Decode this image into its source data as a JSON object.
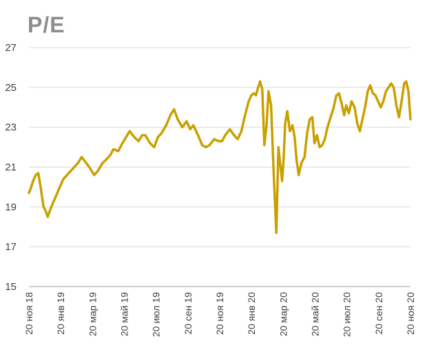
{
  "chart_data": {
    "type": "line",
    "title": "P/E",
    "xlabel": "",
    "ylabel": "",
    "ylim": [
      15,
      27
    ],
    "yticks": [
      15,
      17,
      19,
      21,
      23,
      25,
      27
    ],
    "grid": true,
    "line_color": "#c9a000",
    "x_tick_labels": [
      "20 ноя 18",
      "20 янв 19",
      "20 мар 19",
      "20 май 19",
      "20 июл 19",
      "20 сен 19",
      "20 ноя 19",
      "20 янв 20",
      "20 мар 20",
      "20 май 20",
      "20 июл 20",
      "20 сен 20",
      "20 ноя 20"
    ],
    "x_range": [
      "2018-11-20",
      "2020-11-20"
    ],
    "series": [
      {
        "x": [
          "2018-11-20",
          "2018-11-23",
          "2018-11-28",
          "2018-12-03",
          "2018-12-08",
          "2018-12-13",
          "2018-12-18",
          "2018-12-22",
          "2018-12-26",
          "2018-12-30",
          "2019-01-05",
          "2019-01-10",
          "2019-01-15",
          "2019-01-20",
          "2019-01-25",
          "2019-02-01",
          "2019-02-08",
          "2019-02-15",
          "2019-02-22",
          "2019-03-01",
          "2019-03-10",
          "2019-03-18",
          "2019-03-25",
          "2019-04-01",
          "2019-04-10",
          "2019-04-18",
          "2019-04-25",
          "2019-05-01",
          "2019-05-10",
          "2019-05-18",
          "2019-05-25",
          "2019-06-01",
          "2019-06-10",
          "2019-06-18",
          "2019-06-25",
          "2019-07-01",
          "2019-07-10",
          "2019-07-18",
          "2019-07-25",
          "2019-08-01",
          "2019-08-10",
          "2019-08-18",
          "2019-08-25",
          "2019-09-01",
          "2019-09-10",
          "2019-09-18",
          "2019-09-25",
          "2019-10-01",
          "2019-10-10",
          "2019-10-18",
          "2019-10-25",
          "2019-11-01",
          "2019-11-10",
          "2019-11-18",
          "2019-11-25",
          "2019-12-01",
          "2019-12-10",
          "2019-12-18",
          "2019-12-25",
          "2020-01-01",
          "2020-01-08",
          "2020-01-15",
          "2020-01-20",
          "2020-01-25",
          "2020-01-29",
          "2020-02-02",
          "2020-02-06",
          "2020-02-10",
          "2020-02-14",
          "2020-02-18",
          "2020-02-22",
          "2020-02-27",
          "2020-03-03",
          "2020-03-08",
          "2020-03-12",
          "2020-03-16",
          "2020-03-19",
          "2020-03-22",
          "2020-03-25",
          "2020-03-29",
          "2020-04-03",
          "2020-04-08",
          "2020-04-12",
          "2020-04-16",
          "2020-04-20",
          "2020-04-25",
          "2020-05-01",
          "2020-05-06",
          "2020-05-11",
          "2020-05-16",
          "2020-05-20",
          "2020-05-25",
          "2020-05-30",
          "2020-06-04",
          "2020-06-09",
          "2020-06-14",
          "2020-06-20",
          "2020-06-25",
          "2020-07-01",
          "2020-07-06",
          "2020-07-11",
          "2020-07-16",
          "2020-07-20",
          "2020-07-25",
          "2020-07-30",
          "2020-08-05",
          "2020-08-10",
          "2020-08-15",
          "2020-08-20",
          "2020-08-25",
          "2020-08-30",
          "2020-09-04",
          "2020-09-09",
          "2020-09-14",
          "2020-09-19",
          "2020-09-24",
          "2020-09-29",
          "2020-10-04",
          "2020-10-09",
          "2020-10-14",
          "2020-10-19",
          "2020-10-24",
          "2020-10-29",
          "2020-11-03",
          "2020-11-08",
          "2020-11-12",
          "2020-11-16",
          "2020-11-20"
        ],
        "values": [
          19.7,
          19.9,
          20.3,
          20.6,
          20.7,
          19.9,
          19.0,
          18.8,
          18.5,
          18.8,
          19.2,
          19.5,
          19.8,
          20.1,
          20.4,
          20.6,
          20.8,
          21.0,
          21.2,
          21.5,
          21.2,
          20.9,
          20.6,
          20.8,
          21.2,
          21.4,
          21.6,
          21.9,
          21.8,
          22.2,
          22.5,
          22.8,
          22.5,
          22.3,
          22.6,
          22.6,
          22.2,
          22.0,
          22.5,
          22.7,
          23.1,
          23.6,
          23.9,
          23.4,
          23.0,
          23.3,
          22.9,
          23.1,
          22.6,
          22.1,
          22.0,
          22.1,
          22.4,
          22.3,
          22.3,
          22.6,
          22.9,
          22.6,
          22.4,
          22.8,
          23.6,
          24.3,
          24.6,
          24.7,
          24.6,
          25.0,
          25.3,
          24.9,
          22.1,
          23.0,
          24.8,
          24.1,
          20.7,
          17.7,
          22.0,
          21.0,
          20.3,
          21.4,
          23.2,
          23.8,
          22.8,
          23.1,
          22.5,
          21.3,
          20.6,
          21.2,
          21.5,
          22.7,
          23.4,
          23.5,
          22.2,
          22.6,
          22.0,
          22.1,
          22.4,
          23.0,
          23.5,
          23.9,
          24.6,
          24.7,
          24.2,
          23.6,
          24.1,
          23.7,
          24.3,
          24.0,
          23.2,
          22.8,
          23.4,
          24.0,
          24.8,
          25.1,
          24.7,
          24.6,
          24.3,
          24.0,
          24.3,
          24.8,
          25.0,
          25.2,
          25.0,
          24.1,
          23.5,
          24.3,
          25.2,
          25.3,
          24.8,
          23.4
        ]
      }
    ]
  }
}
